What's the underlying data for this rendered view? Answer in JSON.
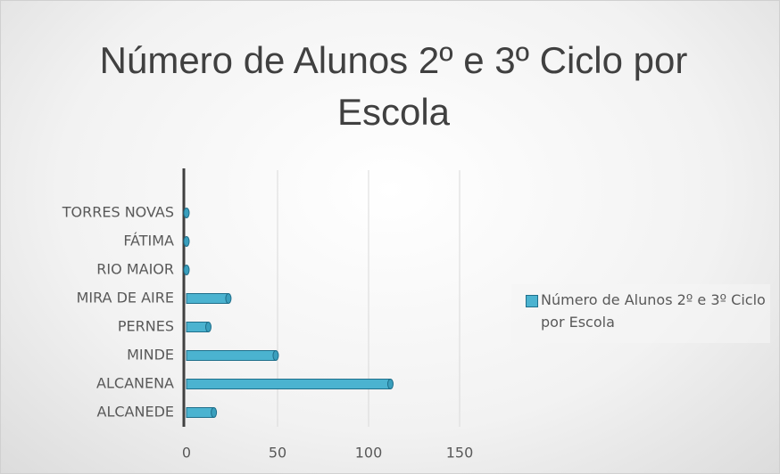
{
  "chart_data": {
    "type": "hbar",
    "title": "Número de Alunos 2º e 3º Ciclo por Escola",
    "categories": [
      "ALCANEDE",
      "ALCANENA",
      "MINDE",
      "PERNES",
      "MIRA DE AIRE",
      "RIO MAIOR",
      "FÁTIMA",
      "TORRES NOVAS"
    ],
    "series": [
      {
        "name": "Número de Alunos 2º e 3º Ciclo por Escola",
        "color": "#4bb3d0",
        "values": [
          15,
          112,
          49,
          12,
          23,
          0,
          0,
          0
        ]
      }
    ],
    "xlim": [
      0,
      150
    ],
    "xticks": [
      0,
      50,
      100,
      150
    ],
    "grid": true
  }
}
